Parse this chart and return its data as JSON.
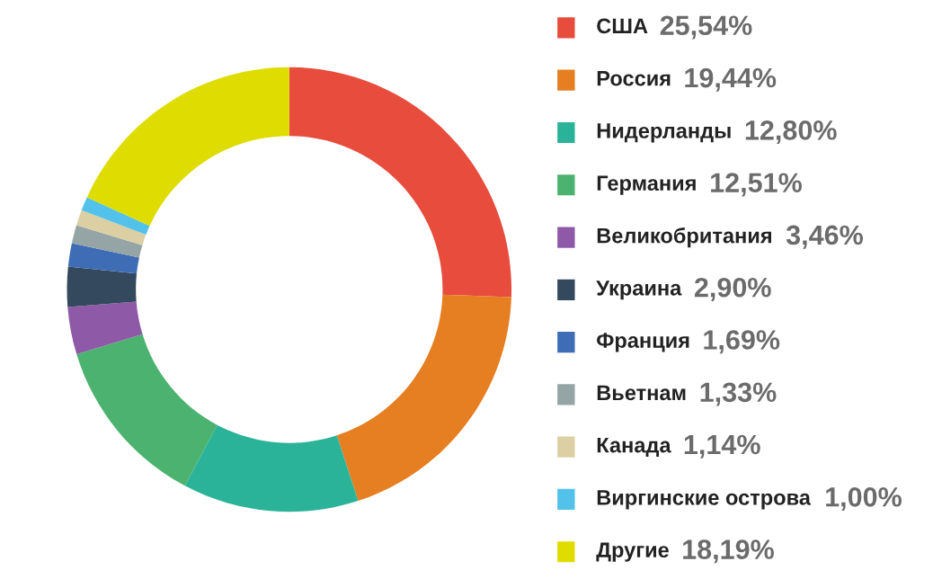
{
  "chart_data": {
    "type": "donut",
    "categories": [
      "США",
      "Россия",
      "Нидерланды",
      "Германия",
      "Великобритания",
      "Украина",
      "Франция",
      "Вьетнам",
      "Канада",
      "Виргинские острова",
      "Другие"
    ],
    "values": [
      25.54,
      19.44,
      12.8,
      12.51,
      3.46,
      2.9,
      1.69,
      1.33,
      1.14,
      1.0,
      18.19
    ],
    "value_labels": [
      "25,54%",
      "19,44%",
      "12,80%",
      "12,51%",
      "3,46%",
      "2,90%",
      "1,69%",
      "1,33%",
      "1,14%",
      "1,00%",
      "18,19%"
    ],
    "colors": [
      "#e74c3c",
      "#e67e22",
      "#2bb39a",
      "#4cb26f",
      "#8e5aa8",
      "#34495e",
      "#3e6db5",
      "#95a5a6",
      "#dccfa3",
      "#52c2ea",
      "#dedc00"
    ],
    "legend": "right"
  }
}
